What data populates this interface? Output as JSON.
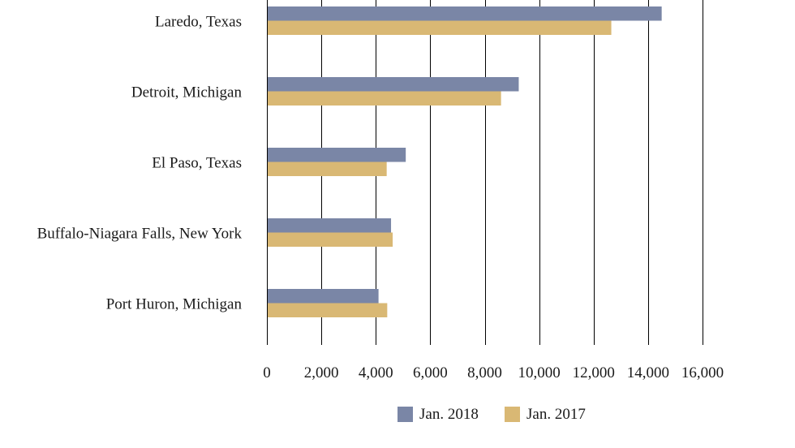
{
  "chart_data": {
    "type": "bar",
    "orientation": "horizontal",
    "title": "",
    "xlabel": "",
    "ylabel": "",
    "categories": [
      "Laredo, Texas",
      "Detroit, Michigan",
      "El Paso, Texas",
      "Buffalo-Niagara Falls, New York",
      "Port Huron, Michigan"
    ],
    "series": [
      {
        "name": "Jan. 2018",
        "color": "#7a86a6",
        "values": [
          14500,
          9250,
          5100,
          4560,
          4100
        ]
      },
      {
        "name": "Jan. 2017",
        "color": "#d9b874",
        "values": [
          12650,
          8600,
          4400,
          4620,
          4420
        ]
      }
    ],
    "xlim": [
      0,
      16000
    ],
    "xticks": [
      0,
      2000,
      4000,
      6000,
      8000,
      10000,
      12000,
      14000,
      16000
    ],
    "xtick_labels": [
      "0",
      "2,000",
      "4,000",
      "6,000",
      "8,000",
      "10,000",
      "12,000",
      "14,000",
      "16,000"
    ],
    "grid": true,
    "legend_position": "bottom-center"
  }
}
